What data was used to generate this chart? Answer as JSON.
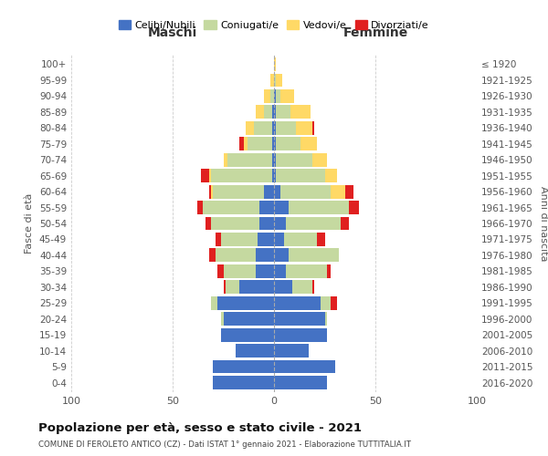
{
  "age_groups": [
    "0-4",
    "5-9",
    "10-14",
    "15-19",
    "20-24",
    "25-29",
    "30-34",
    "35-39",
    "40-44",
    "45-49",
    "50-54",
    "55-59",
    "60-64",
    "65-69",
    "70-74",
    "75-79",
    "80-84",
    "85-89",
    "90-94",
    "95-99",
    "100+"
  ],
  "birth_years": [
    "2016-2020",
    "2011-2015",
    "2006-2010",
    "2001-2005",
    "1996-2000",
    "1991-1995",
    "1986-1990",
    "1981-1985",
    "1976-1980",
    "1971-1975",
    "1966-1970",
    "1961-1965",
    "1956-1960",
    "1951-1955",
    "1946-1950",
    "1941-1945",
    "1936-1940",
    "1931-1935",
    "1926-1930",
    "1921-1925",
    "≤ 1920"
  ],
  "colors": {
    "celibi": "#4472c4",
    "coniugati": "#c5d9a0",
    "vedovi": "#ffd966",
    "divorziati": "#e02020"
  },
  "males": {
    "celibi": [
      30,
      30,
      19,
      26,
      25,
      28,
      17,
      9,
      9,
      8,
      7,
      7,
      5,
      1,
      1,
      1,
      1,
      1,
      0,
      0,
      0
    ],
    "coniugati": [
      0,
      0,
      0,
      0,
      1,
      3,
      7,
      16,
      20,
      18,
      24,
      28,
      25,
      30,
      22,
      12,
      9,
      4,
      2,
      0,
      0
    ],
    "vedovi": [
      0,
      0,
      0,
      0,
      0,
      0,
      0,
      0,
      0,
      0,
      0,
      0,
      1,
      1,
      2,
      2,
      4,
      4,
      3,
      2,
      0
    ],
    "divorziati": [
      0,
      0,
      0,
      0,
      0,
      0,
      1,
      3,
      3,
      3,
      3,
      3,
      1,
      4,
      0,
      2,
      0,
      0,
      0,
      0,
      0
    ]
  },
  "females": {
    "celibi": [
      26,
      30,
      17,
      26,
      25,
      23,
      9,
      6,
      7,
      5,
      6,
      7,
      3,
      1,
      1,
      1,
      1,
      1,
      1,
      0,
      0
    ],
    "coniugati": [
      0,
      0,
      0,
      0,
      1,
      5,
      10,
      20,
      25,
      16,
      27,
      30,
      25,
      24,
      18,
      12,
      10,
      7,
      2,
      1,
      0
    ],
    "vedovi": [
      0,
      0,
      0,
      0,
      0,
      0,
      0,
      0,
      0,
      0,
      0,
      0,
      7,
      6,
      7,
      8,
      8,
      10,
      7,
      3,
      1
    ],
    "divorziati": [
      0,
      0,
      0,
      0,
      0,
      3,
      1,
      2,
      0,
      4,
      4,
      5,
      4,
      0,
      0,
      0,
      1,
      0,
      0,
      0,
      0
    ]
  },
  "title": "Popolazione per età, sesso e stato civile - 2021",
  "subtitle": "COMUNE DI FEROLETO ANTICO (CZ) - Dati ISTAT 1° gennaio 2021 - Elaborazione TUTTITALIA.IT",
  "xlabel_left": "Maschi",
  "xlabel_right": "Femmine",
  "ylabel_left": "Fasce di età",
  "ylabel_right": "Anni di nascita",
  "xlim": 100,
  "background_color": "#ffffff",
  "grid_color": "#cccccc",
  "legend_labels": [
    "Celibi/Nubili",
    "Coniugati/e",
    "Vedovi/e",
    "Divorziati/e"
  ]
}
